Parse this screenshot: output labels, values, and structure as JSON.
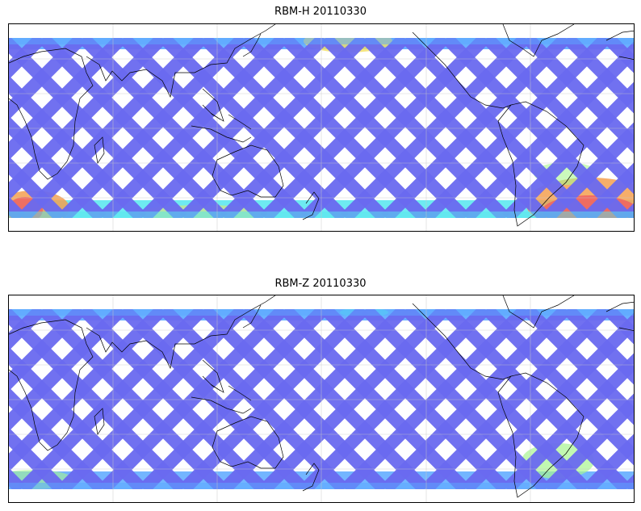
{
  "panels": [
    {
      "id": "top",
      "title": "RBM-H 20110330"
    },
    {
      "id": "bottom",
      "title": "RBM-Z 20110330"
    }
  ],
  "colors": {
    "track_low": "#6a6af0",
    "track_mid": "#5aa8ff",
    "cyan": "#55e6ee",
    "green": "#a8f590",
    "yellow": "#f2e060",
    "orange": "#f5a050",
    "red": "#f06060",
    "coastline": "#000000",
    "grid": "#c8c8c8"
  }
}
